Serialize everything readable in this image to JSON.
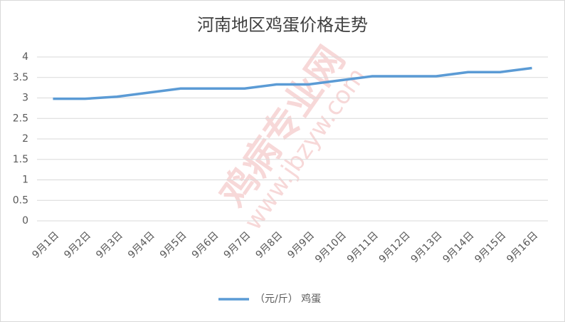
{
  "chart_data": {
    "type": "line",
    "title": "河南地区鸡蛋价格走势",
    "categories": [
      "9月1日",
      "9月2日",
      "9月3日",
      "9月4日",
      "9月5日",
      "9月6日",
      "9月7日",
      "9月8日",
      "9月9日",
      "9月10日",
      "9月11日",
      "9月12日",
      "9月13日",
      "9月14日",
      "9月15日",
      "9月16日"
    ],
    "series": [
      {
        "name": "（元/斤） 鸡蛋",
        "color": "#5b9bd5",
        "values": [
          2.98,
          2.98,
          3.03,
          3.13,
          3.23,
          3.23,
          3.23,
          3.33,
          3.33,
          3.43,
          3.53,
          3.53,
          3.53,
          3.63,
          3.63,
          3.73
        ]
      }
    ],
    "ylim": [
      0,
      4
    ],
    "yticks": [
      0,
      0.5,
      1,
      1.5,
      2,
      2.5,
      3,
      3.5,
      4
    ],
    "grid": true,
    "legend": "bottom",
    "watermark": [
      "鸡病专业网",
      "www.jbzyw.com"
    ]
  }
}
